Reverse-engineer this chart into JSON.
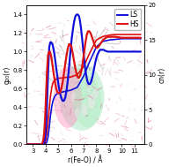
{
  "title": "",
  "xlabel": "r(Fe-O) / Å",
  "ylabel_left": "g₂₀(r)",
  "ylabel_right": "cn(r)",
  "xlim": [
    2.5,
    11.8
  ],
  "ylim_left": [
    0.0,
    1.5
  ],
  "ylim_right": [
    0,
    20
  ],
  "yticks_left": [
    0.0,
    0.2,
    0.4,
    0.6,
    0.8,
    1.0,
    1.2,
    1.4
  ],
  "yticks_right": [
    0,
    5,
    10,
    15,
    20
  ],
  "xticks": [
    3,
    4,
    5,
    6,
    7,
    8,
    9,
    10,
    11
  ],
  "color_LS": "#1010dd",
  "color_HS": "#dd1010",
  "ls_gofr": [
    [
      2.5,
      0.0
    ],
    [
      3.0,
      0.0
    ],
    [
      3.5,
      0.0
    ],
    [
      3.75,
      0.0
    ],
    [
      3.85,
      0.01
    ],
    [
      3.92,
      0.03
    ],
    [
      4.0,
      0.1
    ],
    [
      4.08,
      0.28
    ],
    [
      4.15,
      0.55
    ],
    [
      4.22,
      0.82
    ],
    [
      4.3,
      1.05
    ],
    [
      4.38,
      1.1
    ],
    [
      4.45,
      1.1
    ],
    [
      4.55,
      1.08
    ],
    [
      4.65,
      1.02
    ],
    [
      4.75,
      0.93
    ],
    [
      4.85,
      0.82
    ],
    [
      4.95,
      0.72
    ],
    [
      5.05,
      0.62
    ],
    [
      5.15,
      0.55
    ],
    [
      5.25,
      0.5
    ],
    [
      5.35,
      0.47
    ],
    [
      5.45,
      0.47
    ],
    [
      5.55,
      0.5
    ],
    [
      5.65,
      0.57
    ],
    [
      5.75,
      0.68
    ],
    [
      5.85,
      0.82
    ],
    [
      5.95,
      0.98
    ],
    [
      6.05,
      1.12
    ],
    [
      6.15,
      1.23
    ],
    [
      6.25,
      1.32
    ],
    [
      6.35,
      1.38
    ],
    [
      6.45,
      1.4
    ],
    [
      6.55,
      1.4
    ],
    [
      6.65,
      1.38
    ],
    [
      6.72,
      1.33
    ],
    [
      6.8,
      1.25
    ],
    [
      6.9,
      1.12
    ],
    [
      7.0,
      0.98
    ],
    [
      7.1,
      0.85
    ],
    [
      7.2,
      0.75
    ],
    [
      7.3,
      0.68
    ],
    [
      7.4,
      0.65
    ],
    [
      7.5,
      0.65
    ],
    [
      7.6,
      0.68
    ],
    [
      7.7,
      0.73
    ],
    [
      7.8,
      0.8
    ],
    [
      7.9,
      0.87
    ],
    [
      8.0,
      0.93
    ],
    [
      8.1,
      0.97
    ],
    [
      8.2,
      1.0
    ],
    [
      8.3,
      1.02
    ],
    [
      8.4,
      1.02
    ],
    [
      8.55,
      1.02
    ],
    [
      8.7,
      1.01
    ],
    [
      8.9,
      1.0
    ],
    [
      9.1,
      1.0
    ],
    [
      9.5,
      1.0
    ],
    [
      10.0,
      1.0
    ],
    [
      10.5,
      1.0
    ],
    [
      11.0,
      1.0
    ],
    [
      11.5,
      1.0
    ]
  ],
  "hs_gofr": [
    [
      2.5,
      0.0
    ],
    [
      3.0,
      0.0
    ],
    [
      3.5,
      0.0
    ],
    [
      3.65,
      0.0
    ],
    [
      3.75,
      0.01
    ],
    [
      3.82,
      0.04
    ],
    [
      3.9,
      0.12
    ],
    [
      3.98,
      0.3
    ],
    [
      4.05,
      0.55
    ],
    [
      4.12,
      0.78
    ],
    [
      4.2,
      0.96
    ],
    [
      4.28,
      1.0
    ],
    [
      4.35,
      1.0
    ],
    [
      4.45,
      0.95
    ],
    [
      4.55,
      0.86
    ],
    [
      4.65,
      0.76
    ],
    [
      4.75,
      0.67
    ],
    [
      4.85,
      0.6
    ],
    [
      4.95,
      0.56
    ],
    [
      5.05,
      0.55
    ],
    [
      5.15,
      0.56
    ],
    [
      5.25,
      0.6
    ],
    [
      5.35,
      0.67
    ],
    [
      5.45,
      0.76
    ],
    [
      5.55,
      0.86
    ],
    [
      5.65,
      0.95
    ],
    [
      5.75,
      1.03
    ],
    [
      5.85,
      1.08
    ],
    [
      5.95,
      1.08
    ],
    [
      6.05,
      1.05
    ],
    [
      6.15,
      0.98
    ],
    [
      6.25,
      0.9
    ],
    [
      6.35,
      0.82
    ],
    [
      6.45,
      0.76
    ],
    [
      6.55,
      0.72
    ],
    [
      6.65,
      0.72
    ],
    [
      6.75,
      0.75
    ],
    [
      6.85,
      0.81
    ],
    [
      6.95,
      0.9
    ],
    [
      7.05,
      1.0
    ],
    [
      7.15,
      1.1
    ],
    [
      7.25,
      1.18
    ],
    [
      7.35,
      1.22
    ],
    [
      7.45,
      1.22
    ],
    [
      7.55,
      1.2
    ],
    [
      7.65,
      1.16
    ],
    [
      7.75,
      1.12
    ],
    [
      7.85,
      1.08
    ],
    [
      7.95,
      1.05
    ],
    [
      8.05,
      1.04
    ],
    [
      8.15,
      1.05
    ],
    [
      8.25,
      1.07
    ],
    [
      8.35,
      1.09
    ],
    [
      8.45,
      1.11
    ],
    [
      8.55,
      1.13
    ],
    [
      8.65,
      1.14
    ],
    [
      8.75,
      1.15
    ],
    [
      8.9,
      1.16
    ],
    [
      9.1,
      1.16
    ],
    [
      9.5,
      1.16
    ],
    [
      10.0,
      1.15
    ],
    [
      10.5,
      1.15
    ],
    [
      11.0,
      1.15
    ],
    [
      11.5,
      1.15
    ]
  ],
  "ls_cn": [
    [
      2.5,
      0.0
    ],
    [
      3.5,
      0.0
    ],
    [
      3.85,
      0.0
    ],
    [
      4.0,
      0.05
    ],
    [
      4.1,
      0.3
    ],
    [
      4.2,
      1.0
    ],
    [
      4.3,
      2.5
    ],
    [
      4.4,
      4.2
    ],
    [
      4.5,
      5.5
    ],
    [
      4.6,
      6.3
    ],
    [
      4.7,
      6.8
    ],
    [
      4.8,
      7.1
    ],
    [
      5.0,
      7.4
    ],
    [
      5.5,
      7.6
    ],
    [
      6.0,
      7.8
    ],
    [
      6.5,
      8.2
    ],
    [
      7.0,
      9.8
    ],
    [
      7.5,
      12.0
    ],
    [
      8.0,
      14.0
    ],
    [
      8.5,
      14.8
    ],
    [
      9.0,
      15.0
    ],
    [
      9.5,
      15.1
    ],
    [
      10.0,
      15.2
    ],
    [
      11.5,
      15.2
    ]
  ],
  "hs_cn": [
    [
      2.5,
      0.0
    ],
    [
      3.5,
      0.0
    ],
    [
      3.75,
      0.0
    ],
    [
      3.9,
      0.05
    ],
    [
      4.0,
      0.4
    ],
    [
      4.1,
      1.5
    ],
    [
      4.2,
      3.2
    ],
    [
      4.3,
      5.2
    ],
    [
      4.4,
      7.0
    ],
    [
      4.5,
      8.2
    ],
    [
      4.6,
      8.9
    ],
    [
      4.7,
      9.2
    ],
    [
      5.0,
      9.5
    ],
    [
      5.5,
      9.6
    ],
    [
      6.0,
      9.7
    ],
    [
      6.5,
      10.0
    ],
    [
      7.0,
      11.2
    ],
    [
      7.5,
      13.2
    ],
    [
      8.0,
      15.0
    ],
    [
      8.5,
      15.5
    ],
    [
      9.0,
      15.7
    ],
    [
      9.5,
      15.8
    ],
    [
      10.0,
      15.8
    ],
    [
      11.5,
      15.8
    ]
  ],
  "bg_color": "#f5f0ee"
}
